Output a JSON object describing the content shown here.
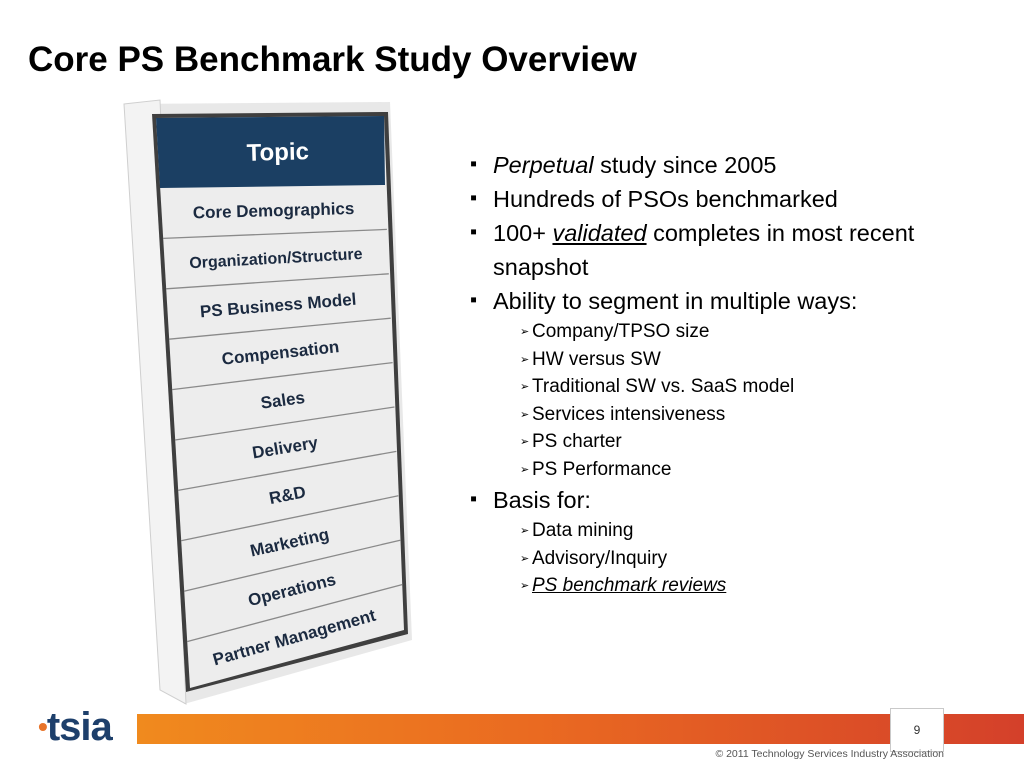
{
  "title": "Core PS Benchmark Study Overview",
  "topic_table": {
    "header": "Topic",
    "rows": [
      "Core Demographics",
      "Organization/Structure",
      "PS Business Model",
      "Compensation",
      "Sales",
      "Delivery",
      "R&D",
      "Marketing",
      "Operations",
      "Partner Management"
    ],
    "colors": {
      "header_bg": "#1b3f63",
      "row_bg": "#e9e9e9",
      "frame": "#4a4a4a"
    }
  },
  "bullets": {
    "b1_italic": "Perpetual",
    "b1_rest": " study since 2005",
    "b2": "Hundreds of PSOs benchmarked",
    "b3_pre": "100+ ",
    "b3_ul": "validated",
    "b3_rest": " completes in most recent snapshot",
    "b4": "Ability to segment in multiple ways:",
    "b4_subs": [
      "Company/TPSO size",
      "HW versus SW",
      "Traditional SW vs. SaaS model",
      "Services intensiveness",
      "PS charter",
      "PS Performance"
    ],
    "b5": "Basis for:",
    "b5_subs": [
      "Data mining",
      "Advisory/Inquiry"
    ],
    "b5_link": "PS benchmark reviews"
  },
  "footer": {
    "logo_text": "tsia",
    "page_number": "9",
    "copyright": "© 2011 Technology Services Industry Association"
  },
  "colors": {
    "bar_start": "#f08a1e",
    "bar_end": "#d4402a",
    "logo": "#1d3f6b"
  }
}
